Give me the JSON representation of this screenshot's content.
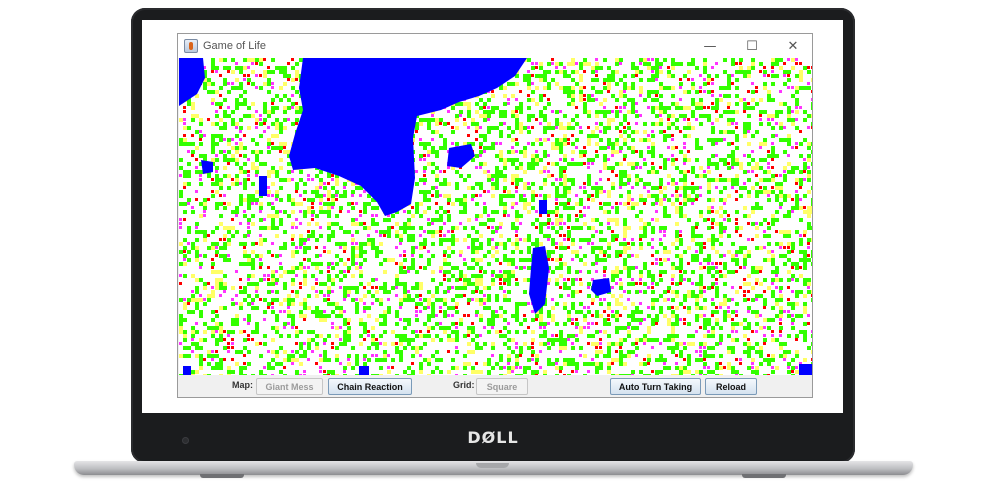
{
  "device": {
    "logo_text": "DØLL"
  },
  "window": {
    "title": "Game of Life",
    "controls": {
      "minimize": "—",
      "maximize": "☐",
      "close": "✕"
    }
  },
  "toolbar": {
    "map_label": "Map:",
    "map_current": "Giant Mess",
    "chain_reaction_button": "Chain Reaction",
    "grid_label": "Grid:",
    "grid_current": "Square",
    "auto_turn_button": "Auto Turn Taking",
    "reload_button": "Reload"
  },
  "simulation": {
    "colors": {
      "water": "#0000ff",
      "empty": "#ffffff",
      "green": "#33ff00",
      "yellow": "#ffff66",
      "magenta": "#ff33ff",
      "red": "#ff0000"
    }
  }
}
